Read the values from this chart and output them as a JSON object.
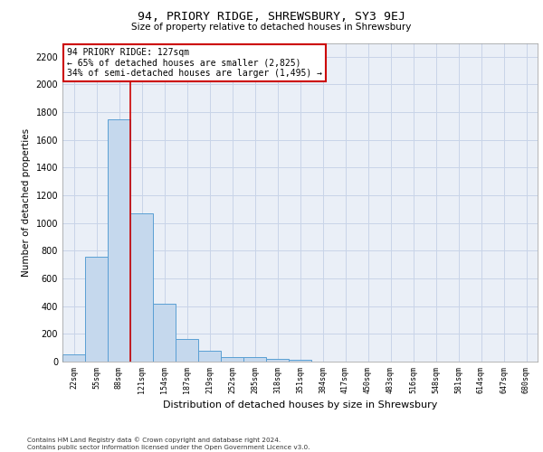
{
  "title": "94, PRIORY RIDGE, SHREWSBURY, SY3 9EJ",
  "subtitle": "Size of property relative to detached houses in Shrewsbury",
  "xlabel": "Distribution of detached houses by size in Shrewsbury",
  "ylabel": "Number of detached properties",
  "bin_labels": [
    "22sqm",
    "55sqm",
    "88sqm",
    "121sqm",
    "154sqm",
    "187sqm",
    "219sqm",
    "252sqm",
    "285sqm",
    "318sqm",
    "351sqm",
    "384sqm",
    "417sqm",
    "450sqm",
    "483sqm",
    "516sqm",
    "548sqm",
    "581sqm",
    "614sqm",
    "647sqm",
    "680sqm"
  ],
  "bar_values": [
    50,
    760,
    1750,
    1070,
    420,
    160,
    80,
    35,
    35,
    20,
    15,
    0,
    0,
    0,
    0,
    0,
    0,
    0,
    0,
    0,
    0
  ],
  "bar_color": "#c5d8ed",
  "bar_edge_color": "#5a9fd4",
  "grid_color": "#c8d4e8",
  "background_color": "#eaeff7",
  "property_line_color": "#cc0000",
  "annotation_text": "94 PRIORY RIDGE: 127sqm\n← 65% of detached houses are smaller (2,825)\n34% of semi-detached houses are larger (1,495) →",
  "annotation_box_color": "#cc0000",
  "ylim": [
    0,
    2300
  ],
  "yticks": [
    0,
    200,
    400,
    600,
    800,
    1000,
    1200,
    1400,
    1600,
    1800,
    2000,
    2200
  ],
  "footer_line1": "Contains HM Land Registry data © Crown copyright and database right 2024.",
  "footer_line2": "Contains public sector information licensed under the Open Government Licence v3.0."
}
